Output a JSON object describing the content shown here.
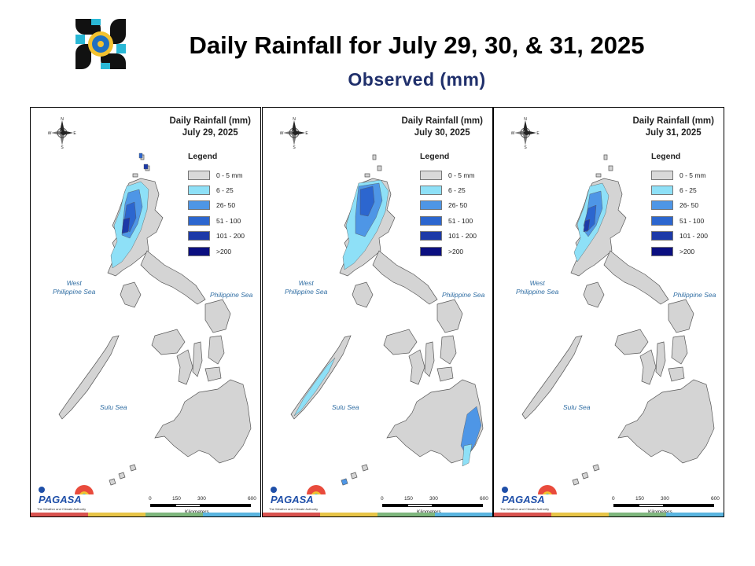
{
  "header": {
    "title": "Daily Rainfall for July 29, 30, & 31, 2025",
    "subtitle": "Observed (mm)"
  },
  "legend": {
    "title": "Legend",
    "items": [
      {
        "label": "0 - 5 mm",
        "color": "#d9d9d9"
      },
      {
        "label": "6 - 25",
        "color": "#8ee0f7"
      },
      {
        "label": "26- 50",
        "color": "#4e96e6"
      },
      {
        "label": "51 - 100",
        "color": "#2c66cf"
      },
      {
        "label": "101 - 200",
        "color": "#1d3aa8"
      },
      {
        "label": ">200",
        "color": "#0b0f80"
      }
    ]
  },
  "panels": [
    {
      "title_line1": "Daily Rainfall (mm)",
      "title_line2": "July 29, 2025"
    },
    {
      "title_line1": "Daily Rainfall (mm)",
      "title_line2": "July 30, 2025"
    },
    {
      "title_line1": "Daily Rainfall (mm)",
      "title_line2": "July 31, 2025"
    }
  ],
  "seas": {
    "west_line1": "West",
    "west_line2": "Philippine Sea",
    "east": "Philippine Sea",
    "sulu": "Sulu Sea"
  },
  "scale": {
    "ticks": [
      "0",
      "150",
      "300",
      "600"
    ],
    "unit": "Kilometers"
  },
  "compass": {
    "n": "N",
    "s": "S",
    "e": "E",
    "w": "W"
  },
  "branding": {
    "name": "PAGASA",
    "tagline": "The Weather and Climate Authority"
  },
  "colors": {
    "land": "#d4d4d4",
    "outline": "#555555",
    "stripe": [
      "#d9534f",
      "#e8c547",
      "#7fb77e",
      "#5bb5e0"
    ]
  }
}
